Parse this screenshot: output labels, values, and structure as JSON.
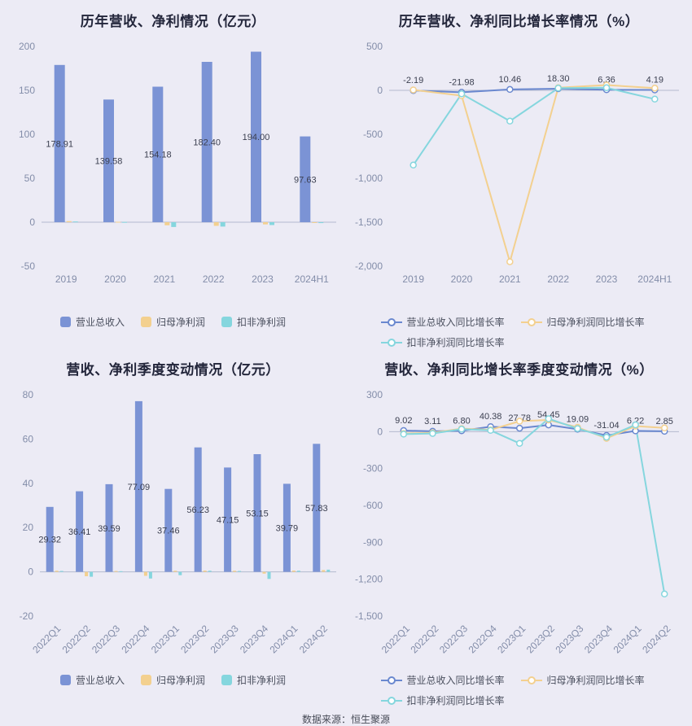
{
  "page": {
    "footer": "数据来源：恒生聚源"
  },
  "colors": {
    "background": "#ECEBF5",
    "revenue_blue": "#7B93D5",
    "line_blue": "#6A88CF",
    "profit_yellow": "#F3D08F",
    "nonrecurring_teal": "#85D6DE",
    "axis_text": "#838DA9",
    "zero_line": "#B4BACF"
  },
  "chart_data": [
    {
      "type": "bar",
      "title": "历年营收、净利情况（亿元）",
      "categories": [
        "2019",
        "2020",
        "2021",
        "2022",
        "2023",
        "2024H1"
      ],
      "ylim": [
        -50,
        200
      ],
      "yticks": [
        200,
        150,
        100,
        50,
        0,
        -50
      ],
      "grid": false,
      "legend_icon": "rect",
      "legend_position": "bottom",
      "series": [
        {
          "name": "营业总收入",
          "color": "#7B93D5",
          "values": [
            178.91,
            139.58,
            154.18,
            182.4,
            194,
            97.63
          ],
          "value_labels": [
            "178.91",
            "139.58",
            "154.18",
            "182.40",
            "194.00",
            "97.63"
          ]
        },
        {
          "name": "归母净利润",
          "color": "#F3D08F",
          "values": [
            1.2,
            0.5,
            -3.5,
            -4.2,
            -2.5,
            -0.6
          ]
        },
        {
          "name": "扣非净利润",
          "color": "#85D6DE",
          "values": [
            0.8,
            0.3,
            -5.5,
            -5.0,
            -3.2,
            -1.0
          ]
        }
      ]
    },
    {
      "type": "line",
      "title": "历年营收、净利同比增长率情况（%）",
      "categories": [
        "2019",
        "2020",
        "2021",
        "2022",
        "2023",
        "2024H1"
      ],
      "ylim": [
        -2000,
        500
      ],
      "yticks": [
        500,
        0,
        -500,
        -1000,
        -1500,
        -2000
      ],
      "grid": false,
      "legend_icon": "line",
      "legend_position": "bottom",
      "series": [
        {
          "name": "营业总收入同比增长率",
          "color": "#6A88CF",
          "values": [
            -2.19,
            -21.98,
            10.46,
            18.3,
            6.36,
            4.19
          ],
          "value_labels": [
            "-2.19",
            "-21.98",
            "10.46",
            "18.30",
            "6.36",
            "4.19"
          ]
        },
        {
          "name": "归母净利润同比增长率",
          "color": "#F3D08F",
          "values": [
            5,
            -60,
            -1950,
            30,
            60,
            25
          ]
        },
        {
          "name": "扣非净利润同比增长率",
          "color": "#85D6DE",
          "values": [
            -850,
            -40,
            -350,
            25,
            30,
            -100
          ]
        }
      ]
    },
    {
      "type": "bar",
      "title": "营收、净利季度变动情况（亿元）",
      "categories": [
        "2022Q1",
        "2022Q2",
        "2022Q3",
        "2022Q4",
        "2023Q1",
        "2023Q2",
        "2023Q3",
        "2023Q4",
        "2024Q1",
        "2024Q2"
      ],
      "ylim": [
        -20,
        80
      ],
      "yticks": [
        80,
        60,
        40,
        20,
        0,
        -20
      ],
      "grid": false,
      "legend_icon": "rect",
      "legend_position": "bottom",
      "rotate_x_labels": true,
      "series": [
        {
          "name": "营业总收入",
          "color": "#7B93D5",
          "values": [
            29.32,
            36.41,
            39.59,
            77.09,
            37.46,
            56.23,
            47.15,
            53.15,
            39.79,
            57.83
          ],
          "value_labels": [
            "29.32",
            "36.41",
            "39.59",
            "77.09",
            "37.46",
            "56.23",
            "47.15",
            "53.15",
            "39.79",
            "57.83"
          ]
        },
        {
          "name": "归母净利润",
          "color": "#F3D08F",
          "values": [
            0.5,
            -2.0,
            0.4,
            -1.8,
            0.5,
            0.6,
            0.5,
            -0.8,
            0.6,
            0.8
          ]
        },
        {
          "name": "扣非净利润",
          "color": "#85D6DE",
          "values": [
            0.4,
            -2.2,
            0.3,
            -3.0,
            -1.5,
            0.5,
            0.4,
            -3.2,
            0.5,
            1.0
          ]
        }
      ]
    },
    {
      "type": "line",
      "title": "营收、净利同比增长率季度变动情况（%）",
      "categories": [
        "2022Q1",
        "2022Q2",
        "2022Q3",
        "2022Q4",
        "2023Q1",
        "2023Q2",
        "2023Q3",
        "2023Q4",
        "2024Q1",
        "2024Q2"
      ],
      "ylim": [
        -1500,
        300
      ],
      "yticks": [
        300,
        0,
        -300,
        -600,
        -900,
        -1200,
        -1500
      ],
      "grid": false,
      "legend_icon": "line",
      "legend_position": "bottom",
      "rotate_x_labels": true,
      "series": [
        {
          "name": "营业总收入同比增长率",
          "color": "#6A88CF",
          "values": [
            9.02,
            3.11,
            6.8,
            40.38,
            27.78,
            54.45,
            19.09,
            -31.04,
            6.22,
            2.85
          ],
          "value_labels": [
            "9.02",
            "3.11",
            "6.80",
            "40.38",
            "27.78",
            "54.45",
            "19.09",
            "-31.04",
            "6.22",
            "2.85"
          ]
        },
        {
          "name": "归母净利润同比增长率",
          "color": "#F3D08F",
          "values": [
            -15,
            -10,
            25,
            15,
            85,
            95,
            35,
            -55,
            45,
            30
          ]
        },
        {
          "name": "扣非净利润同比增长率",
          "color": "#85D6DE",
          "values": [
            -20,
            -15,
            20,
            10,
            -95,
            105,
            25,
            -45,
            55,
            -1320
          ]
        }
      ]
    }
  ]
}
